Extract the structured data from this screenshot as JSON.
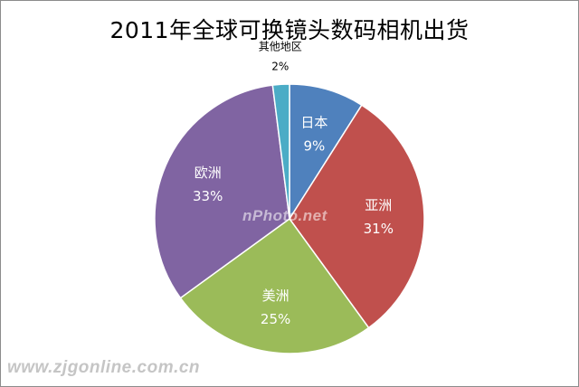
{
  "chart_data": {
    "type": "pie",
    "title": "2011年全球可换镜头数码相机出货",
    "slices": [
      {
        "label": "日本",
        "percent_label": "9%",
        "value": 9,
        "color": "#4f81bd"
      },
      {
        "label": "亚洲",
        "percent_label": "31%",
        "value": 31,
        "color": "#c0504d"
      },
      {
        "label": "美洲",
        "percent_label": "25%",
        "value": 25,
        "color": "#9bbb59"
      },
      {
        "label": "欧洲",
        "percent_label": "33%",
        "value": 33,
        "color": "#8064a2"
      },
      {
        "label": "其他地区",
        "percent_label": "2%",
        "value": 2,
        "color": "#4bacc6"
      }
    ]
  },
  "watermarks": {
    "center": "nPhoto.net",
    "corner": "www.zjgonline.com.cn"
  }
}
